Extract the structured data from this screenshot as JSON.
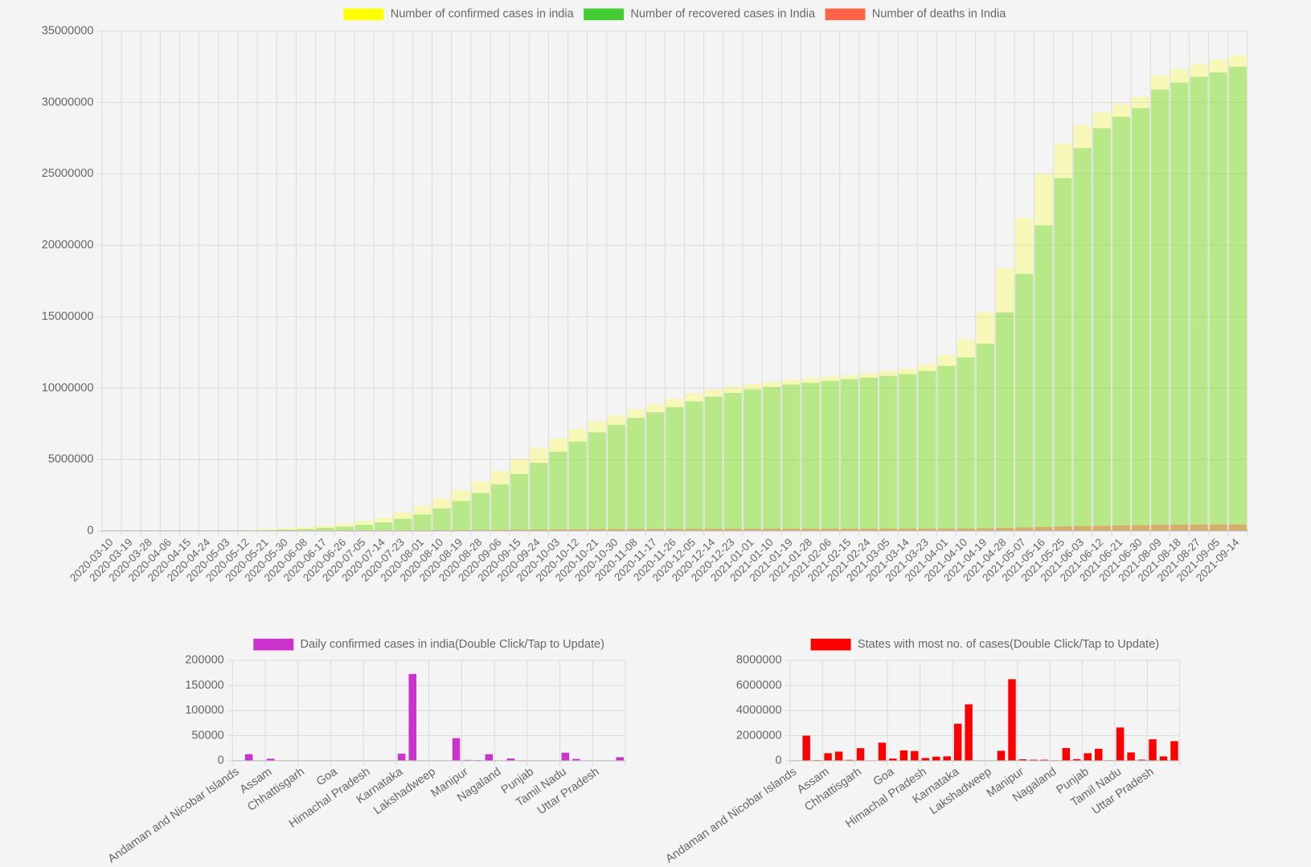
{
  "chart_data": [
    {
      "type": "bar",
      "legend_position": "top",
      "grid": true,
      "categories": [
        "2020-03-10",
        "2020-03-19",
        "2020-03-28",
        "2020-04-06",
        "2020-04-15",
        "2020-04-24",
        "2020-05-03",
        "2020-05-12",
        "2020-05-21",
        "2020-05-30",
        "2020-06-08",
        "2020-06-17",
        "2020-06-26",
        "2020-07-05",
        "2020-07-14",
        "2020-07-23",
        "2020-08-01",
        "2020-08-10",
        "2020-08-19",
        "2020-08-28",
        "2020-09-06",
        "2020-09-15",
        "2020-09-24",
        "2020-10-03",
        "2020-10-12",
        "2020-10-21",
        "2020-10-30",
        "2020-11-08",
        "2020-11-17",
        "2020-11-26",
        "2020-12-05",
        "2020-12-14",
        "2020-12-23",
        "2021-01-01",
        "2021-01-10",
        "2021-01-19",
        "2021-01-28",
        "2021-02-06",
        "2021-02-15",
        "2021-02-24",
        "2021-03-05",
        "2021-03-14",
        "2021-03-23",
        "2021-04-01",
        "2021-04-10",
        "2021-04-19",
        "2021-04-28",
        "2021-05-07",
        "2021-05-16",
        "2021-05-25",
        "2021-06-03",
        "2021-06-12",
        "2021-06-21",
        "2021-06-30",
        "2021-08-09",
        "2021-08-18",
        "2021-08-27",
        "2021-09-05",
        "2021-09-14"
      ],
      "series": [
        {
          "name": "Number of confirmed cases in india",
          "color": "#ffff00",
          "values": [
            50,
            200,
            900,
            4800,
            12400,
            24000,
            42000,
            74000,
            118000,
            182000,
            266000,
            367000,
            508000,
            697000,
            936000,
            1287000,
            1750000,
            2270000,
            2840000,
            3460000,
            4200000,
            5020000,
            5820000,
            6470000,
            7120000,
            7650000,
            8090000,
            8510000,
            8880000,
            9270000,
            9640000,
            9880000,
            10100000,
            10290000,
            10450000,
            10580000,
            10700000,
            10820000,
            10920000,
            11050000,
            11200000,
            11360000,
            11680000,
            12300000,
            13400000,
            15300000,
            18400000,
            21900000,
            25000000,
            27100000,
            28400000,
            29300000,
            29900000,
            30400000,
            31900000,
            32300000,
            32700000,
            33000000,
            33300000
          ]
        },
        {
          "name": "Number of recovered cases in India",
          "color": "#44cc33",
          "values": [
            0,
            0,
            100,
            400,
            1500,
            5000,
            11800,
            24400,
            48000,
            87000,
            130000,
            213000,
            296000,
            424000,
            593000,
            840000,
            1147000,
            1580000,
            2090000,
            2650000,
            3260000,
            3980000,
            4760000,
            5540000,
            6250000,
            6900000,
            7420000,
            7910000,
            8310000,
            8670000,
            9070000,
            9400000,
            9660000,
            9900000,
            10080000,
            10240000,
            10370000,
            10500000,
            10620000,
            10730000,
            10850000,
            10980000,
            11200000,
            11550000,
            12150000,
            13100000,
            15300000,
            18000000,
            21400000,
            24700000,
            26800000,
            28200000,
            29000000,
            29600000,
            30900000,
            31400000,
            31800000,
            32100000,
            32500000
          ]
        },
        {
          "name": "Number of deaths in India",
          "color": "#ff6347",
          "values": [
            0,
            0,
            20,
            120,
            400,
            780,
            1390,
            2420,
            3580,
            5180,
            7470,
            11900,
            15700,
            19700,
            24300,
            30600,
            37400,
            45300,
            53900,
            63500,
            71600,
            82000,
            92300,
            100900,
            109100,
            116600,
            121600,
            126600,
            130500,
            135200,
            140200,
            143700,
            146100,
            148400,
            151100,
            152900,
            154000,
            154800,
            155600,
            156800,
            157500,
            158400,
            160000,
            163000,
            168400,
            180600,
            208300,
            238300,
            270300,
            311400,
            335100,
            353500,
            386700,
            398500,
            428200,
            433000,
            437400,
            440700,
            443700
          ]
        }
      ],
      "ylim": [
        0,
        35000000
      ],
      "yticks": [
        0,
        5000000,
        10000000,
        15000000,
        20000000,
        25000000,
        30000000,
        35000000
      ]
    },
    {
      "type": "bar",
      "legend_position": "top",
      "grid": true,
      "categories": [
        "Andaman and Nicobar Islands",
        null,
        null,
        "Assam",
        null,
        null,
        "Chhattisgarh",
        null,
        null,
        "Goa",
        null,
        null,
        "Himachal Pradesh",
        null,
        null,
        "Karnataka",
        null,
        null,
        "Lakshadweep",
        null,
        null,
        "Manipur",
        null,
        null,
        "Nagaland",
        null,
        null,
        "Punjab",
        null,
        null,
        "Tamil Nadu",
        null,
        null,
        "Uttar Pradesh",
        null,
        null
      ],
      "series": [
        {
          "name": "Daily confirmed cases in india(Double Click/Tap to Update)",
          "color": "#cc33cc",
          "values": [
            120,
            13000,
            300,
            4000,
            50,
            30,
            200,
            10,
            40,
            100,
            30,
            20,
            600,
            400,
            50,
            14000,
            173000,
            20,
            10,
            10,
            45000,
            1500,
            1200,
            13000,
            300,
            4500,
            500,
            100,
            30,
            100,
            16000,
            3500,
            100,
            20,
            50,
            7000
          ]
        }
      ],
      "ylim": [
        0,
        200000
      ],
      "yticks": [
        0,
        50000,
        100000,
        150000,
        200000
      ]
    },
    {
      "type": "bar",
      "legend_position": "top",
      "grid": true,
      "categories": [
        "Andaman and Nicobar Islands",
        null,
        null,
        "Assam",
        null,
        null,
        "Chhattisgarh",
        null,
        null,
        "Goa",
        null,
        null,
        "Himachal Pradesh",
        null,
        null,
        "Karnataka",
        null,
        null,
        "Lakshadweep",
        null,
        null,
        "Manipur",
        null,
        null,
        "Nagaland",
        null,
        null,
        "Punjab",
        null,
        null,
        "Tamil Nadu",
        null,
        null,
        "Uttar Pradesh",
        null,
        null
      ],
      "series": [
        {
          "name": "States with most no. of cases(Double Click/Tap to Update)",
          "color": "#ff0000",
          "values": [
            7500,
            2000000,
            50000,
            600000,
            725000,
            65000,
            1000000,
            10700,
            1438000,
            173000,
            825000,
            770000,
            213000,
            325000,
            348000,
            2950000,
            4500000,
            20600,
            10300,
            792000,
            6500000,
            110000,
            77000,
            75000,
            30000,
            1010000,
            125000,
            600000,
            954000,
            30000,
            2650000,
            660000,
            83000,
            1710000,
            343000,
            1560000
          ]
        }
      ],
      "ylim": [
        0,
        8000000
      ],
      "yticks": [
        0,
        2000000,
        4000000,
        6000000,
        8000000
      ]
    }
  ]
}
